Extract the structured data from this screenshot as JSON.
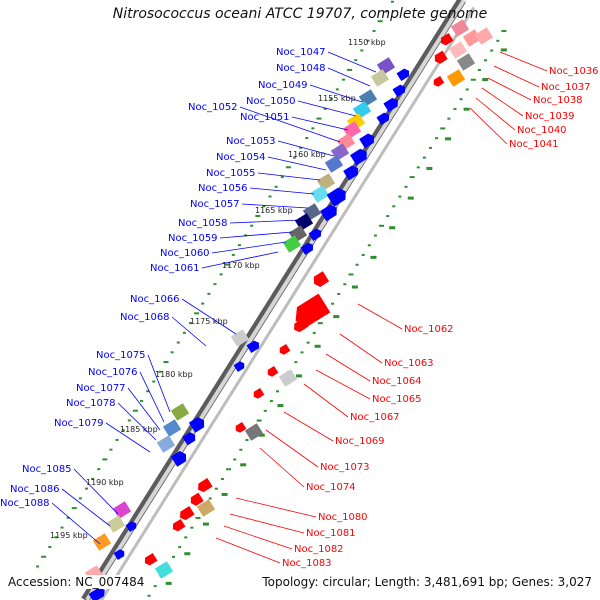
{
  "title": "Nitrosococcus oceani ATCC 19707, complete genome",
  "footer": {
    "accession": "Accession: NC_007484",
    "summary": "Topology: circular; Length: 3,481,691 bp; Genes: 3,027"
  },
  "colors": {
    "forward_strand": "#0000ff",
    "reverse_strand": "#ff0000",
    "backbone": "#7a7a7a",
    "gc_dots": "#2f8f2f"
  },
  "ticks": [
    "1150 kbp",
    "1155 kbp",
    "1160 kbp",
    "1165 kbp",
    "1170 kbp",
    "1175 kbp",
    "1180 kbp",
    "1185 kbp",
    "1190 kbp",
    "1195 kbp"
  ],
  "genes_left": [
    "Noc_1047",
    "Noc_1048",
    "Noc_1049",
    "Noc_1050",
    "Noc_1051",
    "Noc_1052",
    "Noc_1053",
    "Noc_1054",
    "Noc_1055",
    "Noc_1056",
    "Noc_1057",
    "Noc_1058",
    "Noc_1059",
    "Noc_1060",
    "Noc_1061",
    "Noc_1066",
    "Noc_1068",
    "Noc_1075",
    "Noc_1076",
    "Noc_1077",
    "Noc_1078",
    "Noc_1079",
    "Noc_1085",
    "Noc_1086",
    "Noc_1088"
  ],
  "genes_right": [
    "Noc_1036",
    "Noc_1037",
    "Noc_1038",
    "Noc_1039",
    "Noc_1040",
    "Noc_1041",
    "Noc_1062",
    "Noc_1063",
    "Noc_1064",
    "Noc_1065",
    "Noc_1067",
    "Noc_1069",
    "Noc_1073",
    "Noc_1074",
    "Noc_1080",
    "Noc_1081",
    "Noc_1082",
    "Noc_1083"
  ]
}
